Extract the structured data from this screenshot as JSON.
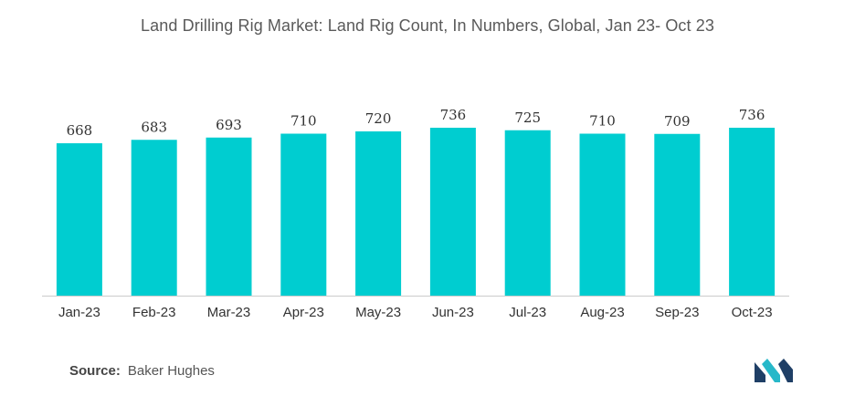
{
  "chart_data": {
    "type": "bar",
    "title": "Land Drilling Rig Market: Land Rig Count, In Numbers, Global, Jan 23- Oct 23",
    "categories": [
      "Jan-23",
      "Feb-23",
      "Mar-23",
      "Apr-23",
      "May-23",
      "Jun-23",
      "Jul-23",
      "Aug-23",
      "Sep-23",
      "Oct-23"
    ],
    "values": [
      668,
      683,
      693,
      710,
      720,
      736,
      725,
      710,
      709,
      736
    ],
    "xlabel": "",
    "ylabel": "",
    "ylim": [
      0,
      740
    ],
    "grid": false,
    "legend": "none",
    "bar_color": "#00cdd0",
    "baseline_color": "#cccccc"
  },
  "source": {
    "label": "Source:",
    "text": "Baker Hughes"
  },
  "logo": {
    "icon": "mordor-intelligence-logo-icon",
    "colors": [
      "#1f3f66",
      "#27b8c9"
    ]
  }
}
